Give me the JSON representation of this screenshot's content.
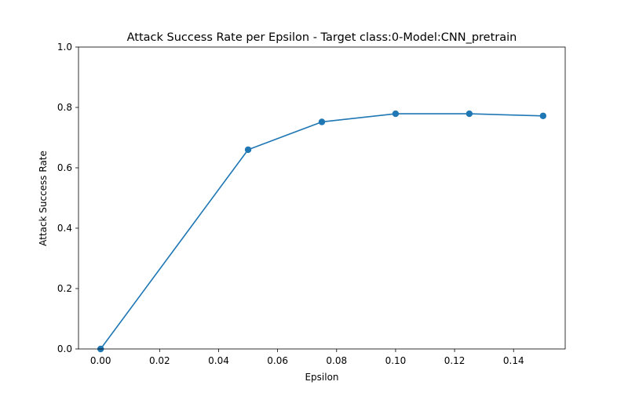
{
  "chart_data": {
    "type": "line",
    "title": "Attack Success Rate per Epsilon - Target class:0-Model:CNN_pretrain",
    "xlabel": "Epsilon",
    "ylabel": "Attack Success Rate",
    "xlim": [
      -0.0075,
      0.1575
    ],
    "ylim": [
      0.0,
      1.0
    ],
    "x_ticks": [
      0.0,
      0.02,
      0.04,
      0.06,
      0.08,
      0.1,
      0.12,
      0.14
    ],
    "x_tick_labels": [
      "0.00",
      "0.02",
      "0.04",
      "0.06",
      "0.08",
      "0.10",
      "0.12",
      "0.14"
    ],
    "y_ticks": [
      0.0,
      0.2,
      0.4,
      0.6,
      0.8,
      1.0
    ],
    "y_tick_labels": [
      "0.0",
      "0.2",
      "0.4",
      "0.6",
      "0.8",
      "1.0"
    ],
    "grid": false,
    "series": [
      {
        "color": "#1f77b4",
        "marker": "circle",
        "x": [
          0.0,
          0.05,
          0.075,
          0.1,
          0.125,
          0.15
        ],
        "y": [
          0.0,
          0.66,
          0.752,
          0.779,
          0.779,
          0.772
        ]
      }
    ]
  }
}
